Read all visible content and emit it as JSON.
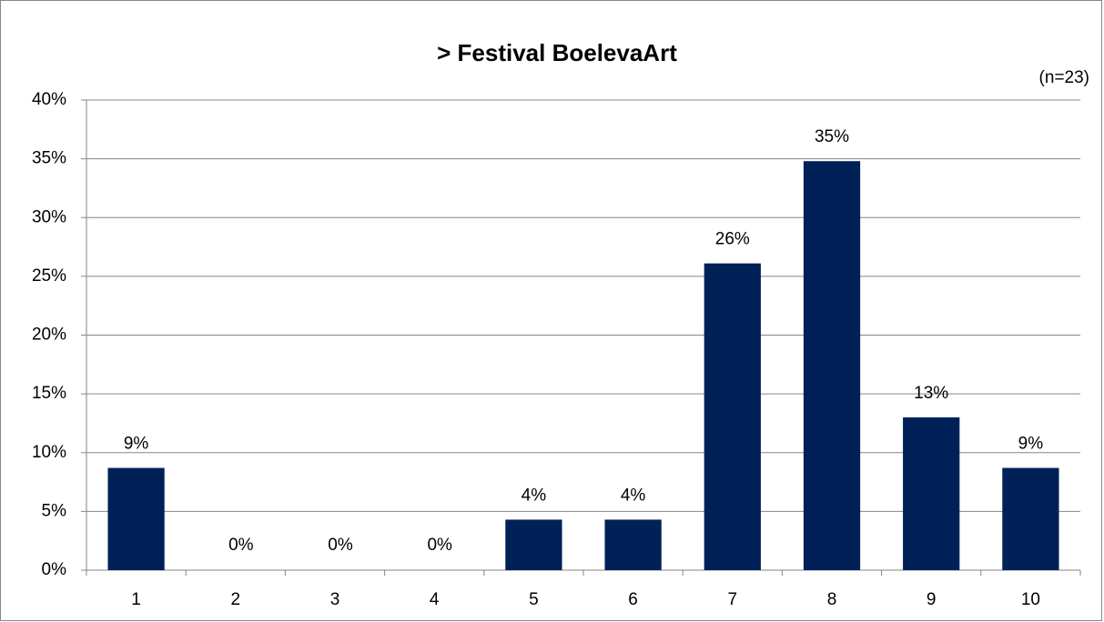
{
  "chart_data": {
    "type": "bar",
    "title": "> Festival BoelevaArt",
    "subtitle": "(n=23)",
    "categories": [
      "1",
      "2",
      "3",
      "4",
      "5",
      "6",
      "7",
      "8",
      "9",
      "10"
    ],
    "values": [
      8.7,
      0,
      0,
      0,
      4.3,
      4.3,
      26.1,
      34.8,
      13.0,
      8.7
    ],
    "value_labels": [
      "9%",
      "0%",
      "0%",
      "0%",
      "4%",
      "4%",
      "26%",
      "35%",
      "13%",
      "9%"
    ],
    "color": "#002157",
    "ylim": [
      0,
      40
    ],
    "yticks": [
      {
        "value": 0,
        "label": "0%"
      },
      {
        "value": 5,
        "label": "5%"
      },
      {
        "value": 10,
        "label": "10%"
      },
      {
        "value": 15,
        "label": "15%"
      },
      {
        "value": 20,
        "label": "20%"
      },
      {
        "value": 25,
        "label": "25%"
      },
      {
        "value": 30,
        "label": "30%"
      },
      {
        "value": 35,
        "label": "35%"
      },
      {
        "value": 40,
        "label": "40%"
      }
    ],
    "grid": true
  }
}
